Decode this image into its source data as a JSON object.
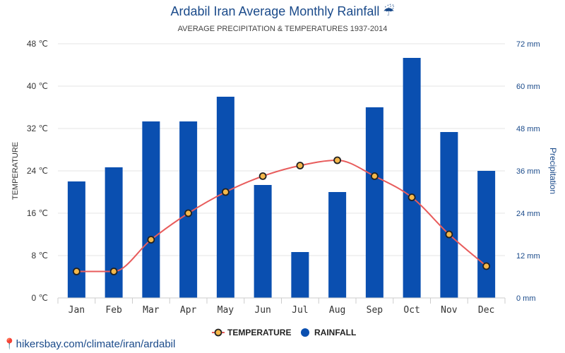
{
  "header": {
    "title": "Ardabil Iran Average Monthly Rainfall ☔",
    "subtitle": "AVERAGE PRECIPITATION & TEMPERATURES 1937-2014"
  },
  "footer": {
    "source": "📍hikersbay.com/climate/iran/ardabil"
  },
  "colors": {
    "bar": "#0a4fb0",
    "line": "#e85c5c",
    "point_fill": "#f5b84a",
    "point_stroke": "#222222",
    "grid": "#e6e6e6"
  },
  "chart_data": {
    "type": "bar",
    "categories": [
      "Jan",
      "Feb",
      "Mar",
      "Apr",
      "May",
      "Jun",
      "Jul",
      "Aug",
      "Sep",
      "Oct",
      "Nov",
      "Dec"
    ],
    "series": [
      {
        "name": "RAINFALL",
        "type": "bar",
        "axis": "right",
        "unit": "mm",
        "values": [
          33,
          37,
          50,
          50,
          57,
          32,
          13,
          30,
          54,
          68,
          47,
          36
        ]
      },
      {
        "name": "TEMPERATURE",
        "type": "line",
        "axis": "left",
        "unit": "℃",
        "values": [
          5,
          5,
          11,
          16,
          20,
          23,
          25,
          26,
          23,
          19,
          12,
          6
        ]
      }
    ],
    "ylabel": "TEMPERATURE",
    "y2label": "Precipitation",
    "ylim": [
      0,
      48
    ],
    "y2lim": [
      0,
      72
    ],
    "yticks": [
      "0 ℃",
      "8 ℃",
      "16 ℃",
      "24 ℃",
      "32 ℃",
      "40 ℃",
      "48 ℃"
    ],
    "y2ticks": [
      "0 mm",
      "12 mm",
      "24 mm",
      "36 mm",
      "48 mm",
      "60 mm",
      "72 mm"
    ],
    "grid": true,
    "legend_position": "bottom-center",
    "legend": [
      "TEMPERATURE",
      "RAINFALL"
    ]
  }
}
